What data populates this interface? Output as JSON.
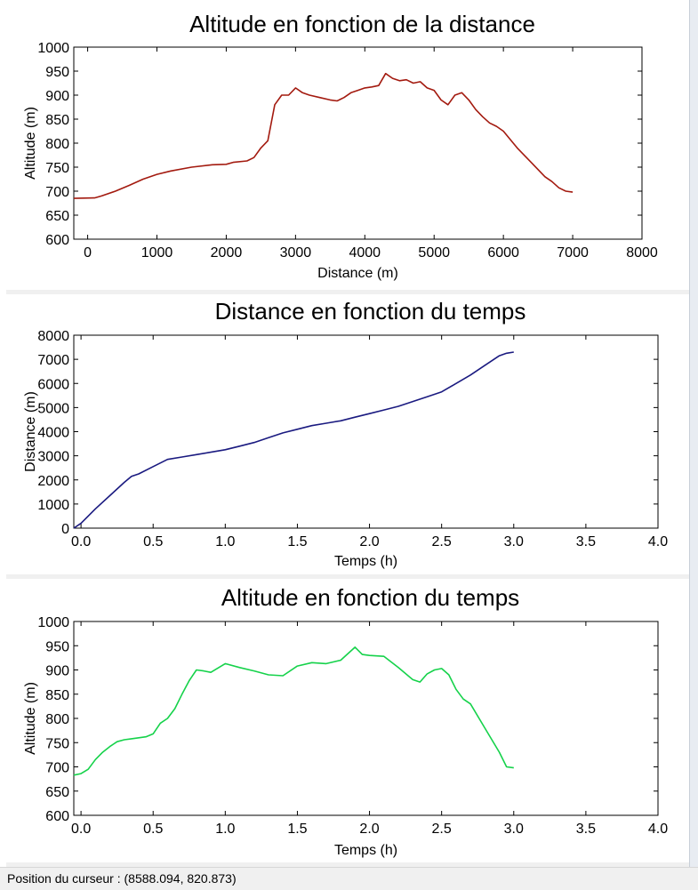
{
  "status_bar": {
    "label": "Position du curseur : (8588.094, 820.873)"
  },
  "colors": {
    "altitude_distance": "#a31a0f",
    "distance_time": "#1a1a80",
    "altitude_time": "#15d24a"
  },
  "chart_data": [
    {
      "type": "line",
      "title": "Altitude en fonction de la distance",
      "xlabel": "Distance (m)",
      "ylabel": "Altitude (m)",
      "xlim": [
        -200,
        8000
      ],
      "ylim": [
        600,
        1000
      ],
      "xticks": [
        "0",
        "1000",
        "2000",
        "3000",
        "4000",
        "5000",
        "6000",
        "7000",
        "8000"
      ],
      "xtick_values": [
        0,
        1000,
        2000,
        3000,
        4000,
        5000,
        6000,
        7000,
        8000
      ],
      "yticks": [
        "600",
        "650",
        "700",
        "750",
        "800",
        "850",
        "900",
        "950",
        "1000"
      ],
      "ytick_values": [
        600,
        650,
        700,
        750,
        800,
        850,
        900,
        950,
        1000
      ],
      "grid": false,
      "color": "#a31a0f",
      "series": [
        {
          "x": [
            -200,
            100,
            200,
            400,
            600,
            800,
            1000,
            1200,
            1500,
            1800,
            2000,
            2100,
            2300,
            2400,
            2500,
            2600,
            2700,
            2800,
            2900,
            3000,
            3100,
            3200,
            3350,
            3500,
            3600,
            3700,
            3800,
            3900,
            4000,
            4100,
            4200,
            4300,
            4400,
            4500,
            4600,
            4700,
            4800,
            4900,
            5000,
            5100,
            5200,
            5300,
            5400,
            5500,
            5600,
            5700,
            5800,
            5900,
            6000,
            6200,
            6400,
            6600,
            6700,
            6800,
            6900,
            7000
          ],
          "y": [
            685,
            686,
            690,
            700,
            712,
            725,
            735,
            742,
            750,
            755,
            756,
            760,
            763,
            770,
            790,
            805,
            880,
            900,
            900,
            915,
            905,
            900,
            895,
            890,
            888,
            895,
            905,
            910,
            915,
            917,
            920,
            945,
            935,
            930,
            932,
            925,
            928,
            915,
            910,
            890,
            880,
            900,
            905,
            890,
            870,
            855,
            842,
            835,
            825,
            790,
            760,
            730,
            720,
            707,
            700,
            698
          ]
        }
      ]
    },
    {
      "type": "line",
      "title": "Distance en fonction du temps",
      "xlabel": "Temps (h)",
      "ylabel": "Distance (m)",
      "xlim": [
        -0.05,
        4.0
      ],
      "ylim": [
        0,
        8000
      ],
      "xticks": [
        "0.0",
        "0.5",
        "1.0",
        "1.5",
        "2.0",
        "2.5",
        "3.0",
        "3.5",
        "4.0"
      ],
      "xtick_values": [
        0,
        0.5,
        1.0,
        1.5,
        2.0,
        2.5,
        3.0,
        3.5,
        4.0
      ],
      "yticks": [
        "0",
        "1000",
        "2000",
        "3000",
        "4000",
        "5000",
        "6000",
        "7000",
        "8000"
      ],
      "ytick_values": [
        0,
        1000,
        2000,
        3000,
        4000,
        5000,
        6000,
        7000,
        8000
      ],
      "grid": false,
      "color": "#1a1a80",
      "series": [
        {
          "x": [
            -0.05,
            0.0,
            0.1,
            0.2,
            0.3,
            0.35,
            0.4,
            0.5,
            0.6,
            0.7,
            0.8,
            0.9,
            1.0,
            1.1,
            1.2,
            1.3,
            1.4,
            1.5,
            1.6,
            1.7,
            1.8,
            1.9,
            2.0,
            2.1,
            2.2,
            2.3,
            2.4,
            2.5,
            2.6,
            2.7,
            2.8,
            2.9,
            2.95,
            3.0
          ],
          "y": [
            0,
            200,
            800,
            1350,
            1900,
            2150,
            2250,
            2550,
            2850,
            2950,
            3050,
            3150,
            3250,
            3400,
            3550,
            3750,
            3950,
            4100,
            4250,
            4350,
            4450,
            4600,
            4750,
            4900,
            5050,
            5250,
            5450,
            5650,
            6000,
            6350,
            6750,
            7150,
            7250,
            7300
          ]
        }
      ]
    },
    {
      "type": "line",
      "title": "Altitude en fonction du temps",
      "xlabel": "Temps (h)",
      "ylabel": "Altitude (m)",
      "xlim": [
        -0.05,
        4.0
      ],
      "ylim": [
        600,
        1000
      ],
      "xticks": [
        "0.0",
        "0.5",
        "1.0",
        "1.5",
        "2.0",
        "2.5",
        "3.0",
        "3.5",
        "4.0"
      ],
      "xtick_values": [
        0,
        0.5,
        1.0,
        1.5,
        2.0,
        2.5,
        3.0,
        3.5,
        4.0
      ],
      "yticks": [
        "600",
        "650",
        "700",
        "750",
        "800",
        "850",
        "900",
        "950",
        "1000"
      ],
      "ytick_values": [
        600,
        650,
        700,
        750,
        800,
        850,
        900,
        950,
        1000
      ],
      "grid": false,
      "color": "#15d24a",
      "series": [
        {
          "x": [
            -0.05,
            0.0,
            0.05,
            0.1,
            0.15,
            0.2,
            0.25,
            0.3,
            0.35,
            0.4,
            0.45,
            0.5,
            0.55,
            0.6,
            0.65,
            0.7,
            0.75,
            0.8,
            0.85,
            0.9,
            1.0,
            1.1,
            1.2,
            1.3,
            1.4,
            1.5,
            1.6,
            1.7,
            1.8,
            1.9,
            1.95,
            2.0,
            2.1,
            2.2,
            2.3,
            2.35,
            2.4,
            2.45,
            2.5,
            2.55,
            2.6,
            2.65,
            2.7,
            2.8,
            2.9,
            2.95,
            3.0
          ],
          "y": [
            683,
            686,
            695,
            715,
            730,
            742,
            752,
            756,
            758,
            760,
            762,
            768,
            790,
            800,
            820,
            850,
            878,
            900,
            898,
            895,
            913,
            905,
            898,
            890,
            888,
            908,
            915,
            913,
            920,
            947,
            932,
            930,
            928,
            905,
            880,
            875,
            892,
            900,
            903,
            890,
            860,
            840,
            830,
            780,
            730,
            700,
            698
          ]
        }
      ]
    }
  ]
}
